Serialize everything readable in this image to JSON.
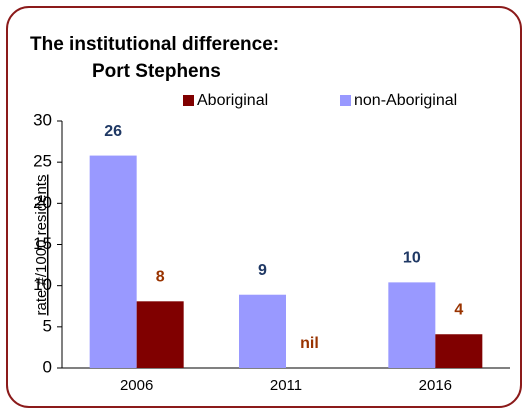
{
  "chart_data": {
    "type": "bar",
    "title": "The institutional difference:",
    "subtitle": "Port Stephens",
    "y_label": "rate #/1000 residents",
    "categories": [
      "2006",
      "2011",
      "2016"
    ],
    "series": [
      {
        "name": "non-Aboriginal",
        "color": "#9999ff",
        "label_color": "#1f3864",
        "values": [
          25.8,
          8.9,
          10.4
        ],
        "value_labels": [
          "26",
          "9",
          "10"
        ]
      },
      {
        "name": "Aboriginal",
        "color": "#800000",
        "label_color": "#993300",
        "values": [
          8.1,
          0,
          4.1
        ],
        "value_labels": [
          "8",
          "nil",
          "4"
        ]
      }
    ],
    "legend_order": [
      1,
      0
    ],
    "ylim": [
      0,
      30
    ],
    "yticks": [
      0,
      5,
      10,
      15,
      20,
      25,
      30
    ],
    "grid": false
  }
}
